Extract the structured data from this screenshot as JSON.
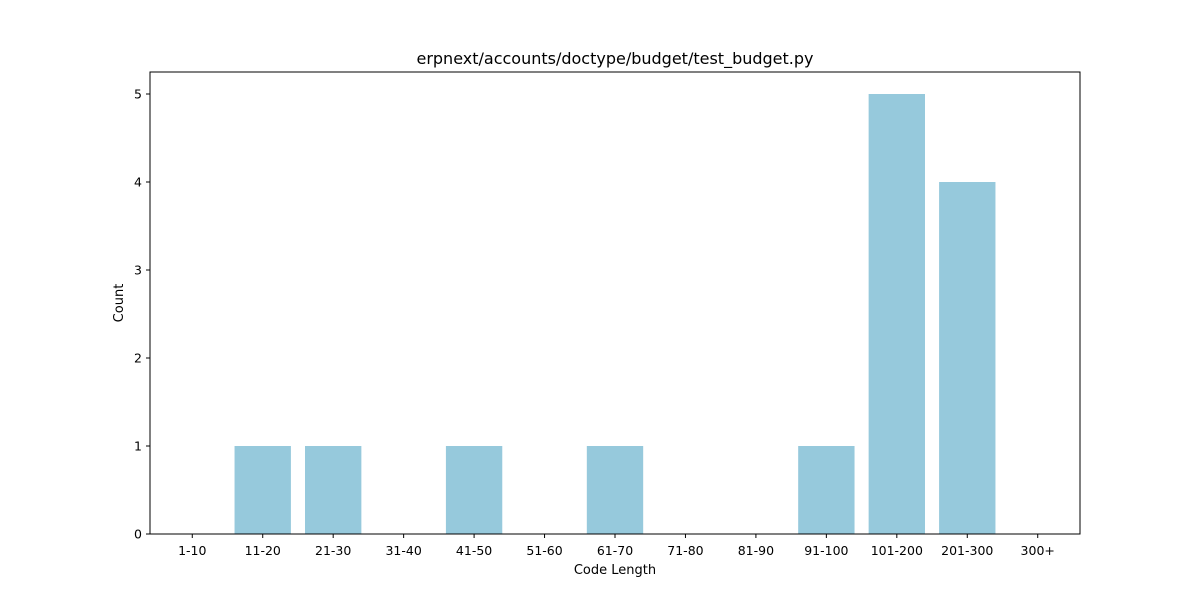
{
  "chart_data": {
    "type": "bar",
    "title": "erpnext/accounts/doctype/budget/test_budget.py",
    "xlabel": "Code Length",
    "ylabel": "Count",
    "categories": [
      "1-10",
      "11-20",
      "21-30",
      "31-40",
      "41-50",
      "51-60",
      "61-70",
      "71-80",
      "81-90",
      "91-100",
      "101-200",
      "201-300",
      "300+"
    ],
    "values": [
      0,
      1,
      1,
      0,
      1,
      0,
      1,
      0,
      0,
      1,
      5,
      4,
      0
    ],
    "ylim": [
      0,
      5.25
    ],
    "yticks": [
      "0",
      "1",
      "2",
      "3",
      "4",
      "5"
    ],
    "grid": false,
    "bar_color": "#96c9dc"
  }
}
